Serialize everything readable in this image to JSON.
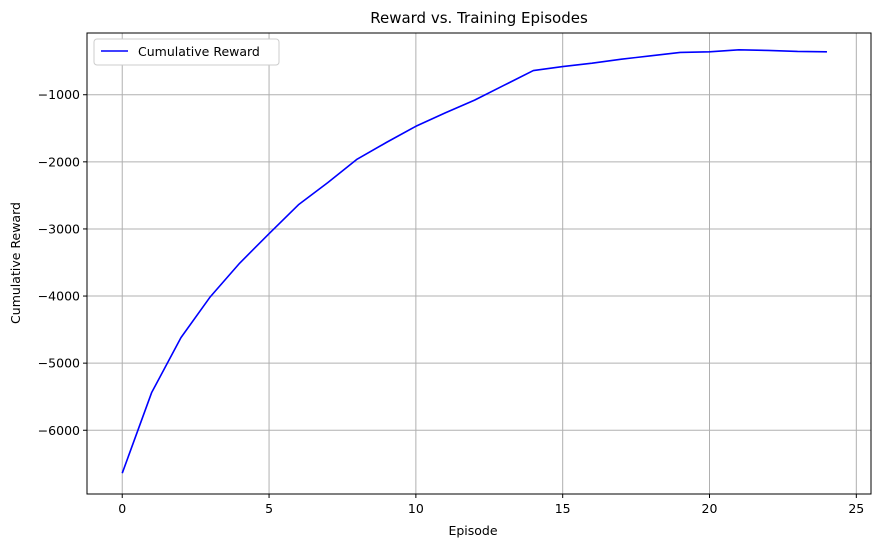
{
  "chart_data": {
    "type": "line",
    "title": "Reward vs. Training Episodes",
    "xlabel": "Episode",
    "ylabel": "Cumulative Reward",
    "xlim": [
      -1.2,
      25.5
    ],
    "ylim": [
      -6950,
      -80
    ],
    "xticks": [
      0,
      5,
      10,
      15,
      20,
      25
    ],
    "yticks": [
      -6000,
      -5000,
      -4000,
      -3000,
      -2000,
      -1000
    ],
    "ytick_labels": [
      "−6000",
      "−5000",
      "−4000",
      "−3000",
      "−2000",
      "−1000"
    ],
    "grid": true,
    "legend_position": "top-left",
    "series": [
      {
        "name": "Cumulative Reward",
        "color": "#0000ff",
        "x": [
          0,
          1,
          2,
          3,
          4,
          5,
          6,
          7,
          8,
          9,
          10,
          11,
          12,
          13,
          14,
          15,
          16,
          17,
          18,
          19,
          20,
          21,
          22,
          23,
          24
        ],
        "y": [
          -6640,
          -5440,
          -4620,
          -4010,
          -3510,
          -3070,
          -2640,
          -2310,
          -1960,
          -1710,
          -1470,
          -1270,
          -1080,
          -860,
          -640,
          -580,
          -530,
          -470,
          -420,
          -370,
          -360,
          -330,
          -340,
          -355,
          -360
        ]
      }
    ]
  }
}
